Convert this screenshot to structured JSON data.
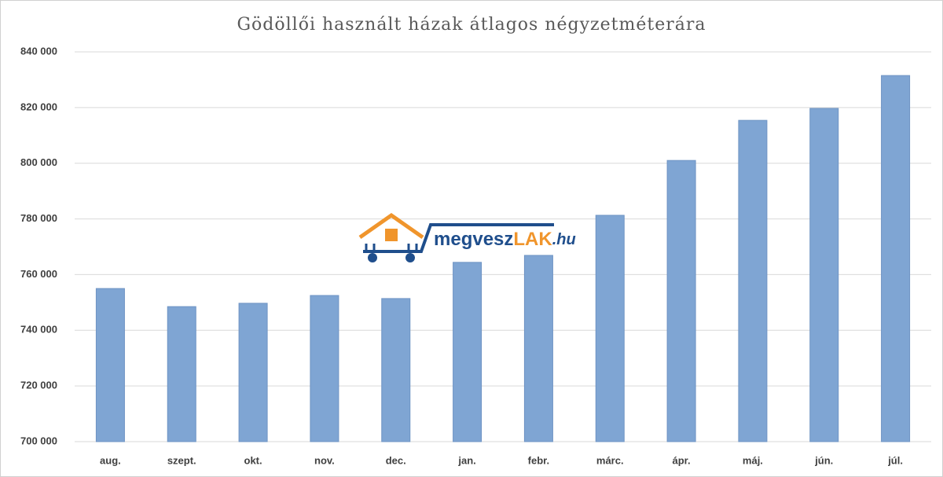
{
  "chart_data": {
    "type": "bar",
    "title": "Gödöllői használt házak átlagos négyzetméterára",
    "categories": [
      "aug.",
      "szept.",
      "okt.",
      "nov.",
      "dec.",
      "jan.",
      "febr.",
      "márc.",
      "ápr.",
      "máj.",
      "jún.",
      "júl."
    ],
    "values": [
      755000,
      748500,
      749700,
      752500,
      751400,
      764400,
      766900,
      781300,
      801000,
      815400,
      819700,
      831500
    ],
    "color": "#7fa5d3",
    "ylim": [
      700000,
      840000
    ],
    "yticks": [
      {
        "value": 700000,
        "label": "700 000"
      },
      {
        "value": 720000,
        "label": "720 000"
      },
      {
        "value": 740000,
        "label": "740 000"
      },
      {
        "value": 760000,
        "label": "760 000"
      },
      {
        "value": 780000,
        "label": "780 000"
      },
      {
        "value": 800000,
        "label": "800 000"
      },
      {
        "value": 820000,
        "label": "820 000"
      },
      {
        "value": 840000,
        "label": "840 000"
      }
    ],
    "grid": true
  },
  "watermark": {
    "name": "megvesz",
    "brand": "LAK",
    "domain": ".hu"
  }
}
